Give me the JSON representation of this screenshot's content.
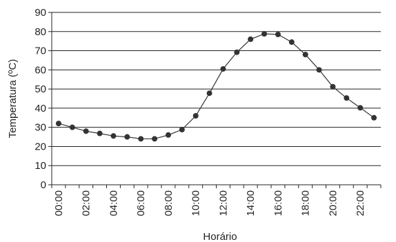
{
  "chart_data": {
    "type": "line",
    "title": "",
    "xlabel": "Horário",
    "ylabel": "Temperatura (ºC)",
    "ylim": [
      0,
      90
    ],
    "yticks": [
      0,
      10,
      20,
      30,
      40,
      50,
      60,
      70,
      80,
      90
    ],
    "x_tick_labels": [
      "00:00",
      "02:00",
      "04:00",
      "06:00",
      "08:00",
      "10:00",
      "12:00",
      "14:00",
      "16:00",
      "18:00",
      "20:00",
      "22:00"
    ],
    "grid": true,
    "series": [
      {
        "x": [
          "00:00",
          "01:00",
          "02:00",
          "03:00",
          "04:00",
          "05:00",
          "06:00",
          "07:00",
          "08:00",
          "09:00",
          "10:00",
          "11:00",
          "12:00",
          "13:00",
          "14:00",
          "15:00",
          "16:00",
          "17:00",
          "18:00",
          "19:00",
          "20:00",
          "21:00",
          "22:00",
          "23:00"
        ],
        "values": [
          32,
          30,
          28,
          26.8,
          25.5,
          25,
          24,
          24,
          26,
          28.8,
          36,
          47.8,
          60.5,
          69.2,
          76,
          78.8,
          78.5,
          74.5,
          68,
          60,
          51.2,
          45.3,
          40.2,
          35
        ],
        "color": "#333333"
      }
    ]
  }
}
